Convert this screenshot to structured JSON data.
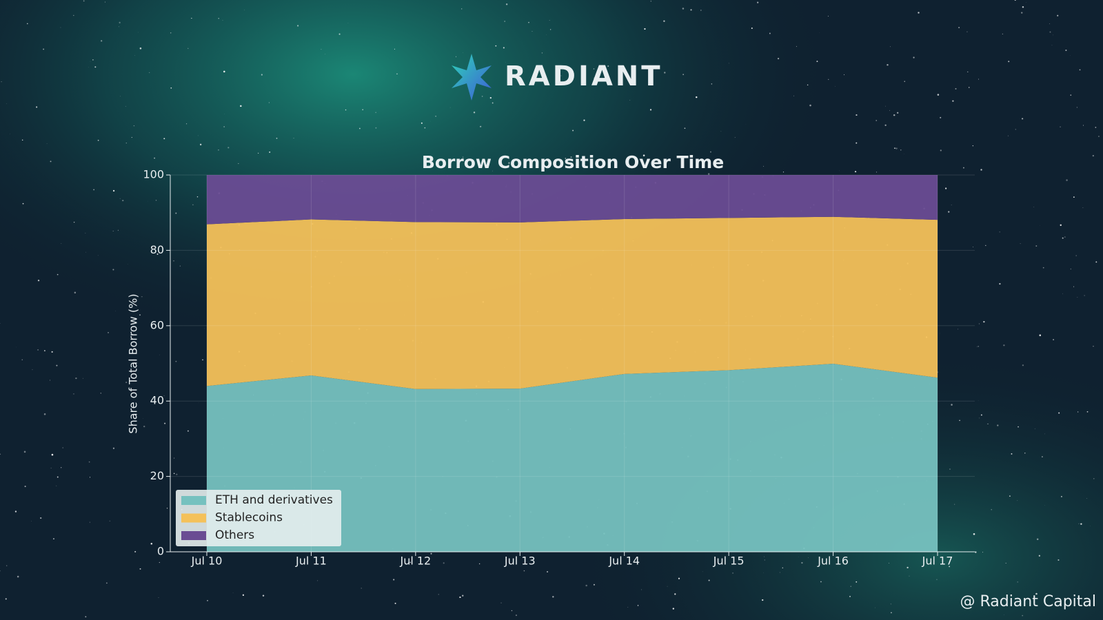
{
  "brand": "RADIANT",
  "watermark": "@ Radiant Capital",
  "chart_data": {
    "type": "area",
    "stacked": true,
    "title": "Borrow Composition Over Time",
    "y_label": "Share of Total Borrow (%)",
    "categories": [
      "Jul 10",
      "Jul 11",
      "Jul 12",
      "Jul 13",
      "Jul 14",
      "Jul 15",
      "Jul 16",
      "Jul 17"
    ],
    "series": [
      {
        "name": "ETH and derivatives",
        "color": "#76c1bf",
        "values": [
          44.0,
          46.8,
          43.2,
          43.3,
          47.2,
          48.2,
          49.9,
          46.2
        ]
      },
      {
        "name": "Stablecoins",
        "color": "#f4c15a",
        "values": [
          42.9,
          41.4,
          44.3,
          44.1,
          41.1,
          40.4,
          39.0,
          41.9
        ]
      },
      {
        "name": "Others",
        "color": "#6a4c93",
        "values": [
          13.1,
          11.8,
          12.5,
          12.6,
          11.7,
          11.4,
          11.1,
          11.9
        ]
      }
    ],
    "ylim": [
      0,
      100
    ],
    "yticks": [
      0,
      20,
      40,
      60,
      80,
      100
    ],
    "grid": true,
    "legend": "lower left"
  }
}
